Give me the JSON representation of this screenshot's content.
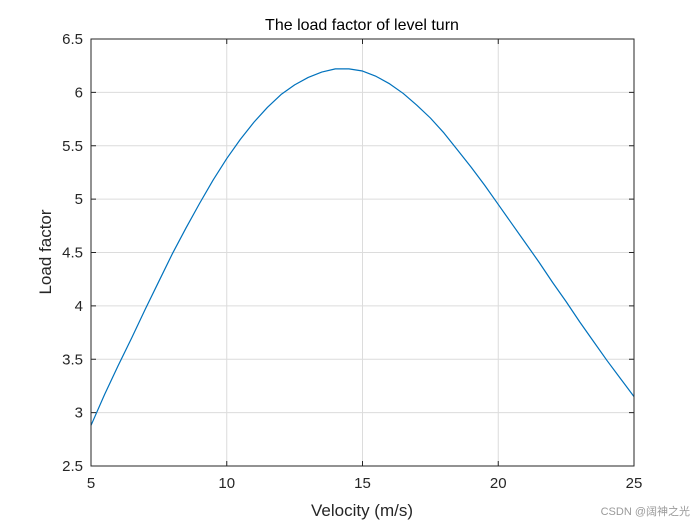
{
  "chart_data": {
    "type": "line",
    "title": "The load factor of level turn",
    "xlabel": "Velocity (m/s)",
    "ylabel": "Load factor",
    "xlim": [
      5,
      25
    ],
    "ylim": [
      2.5,
      6.5
    ],
    "xticks": [
      5,
      10,
      15,
      20,
      25
    ],
    "yticks": [
      2.5,
      3,
      3.5,
      4,
      4.5,
      5,
      5.5,
      6,
      6.5
    ],
    "xtick_labels": [
      "5",
      "10",
      "15",
      "20",
      "25"
    ],
    "ytick_labels": [
      "2.5",
      "3",
      "3.5",
      "4",
      "4.5",
      "5",
      "5.5",
      "6",
      "6.5"
    ],
    "grid": true,
    "series": [
      {
        "color": "#0072bd",
        "x": [
          5,
          5.5,
          6,
          6.5,
          7,
          7.5,
          8,
          8.5,
          9,
          9.5,
          10,
          10.5,
          11,
          11.5,
          12,
          12.5,
          13,
          13.5,
          14,
          14.5,
          15,
          15.5,
          16,
          16.5,
          17,
          17.5,
          18,
          18.5,
          19,
          19.5,
          20,
          20.5,
          21,
          21.5,
          22,
          22.5,
          23,
          23.5,
          24,
          24.5,
          25
        ],
        "y": [
          2.88,
          3.17,
          3.44,
          3.7,
          3.97,
          4.23,
          4.49,
          4.73,
          4.96,
          5.18,
          5.38,
          5.56,
          5.72,
          5.86,
          5.98,
          6.07,
          6.14,
          6.19,
          6.22,
          6.22,
          6.2,
          6.15,
          6.08,
          5.99,
          5.88,
          5.76,
          5.62,
          5.46,
          5.3,
          5.13,
          4.95,
          4.77,
          4.59,
          4.41,
          4.22,
          4.04,
          3.85,
          3.67,
          3.49,
          3.32,
          3.15
        ]
      }
    ]
  },
  "watermark": "CSDN @阔神之光"
}
